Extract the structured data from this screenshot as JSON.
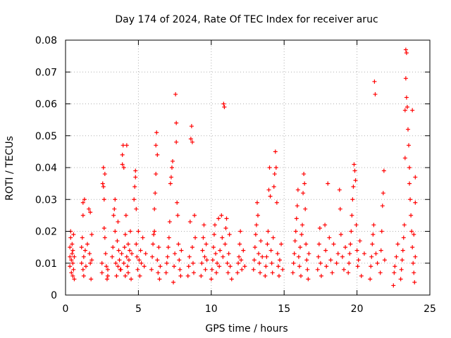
{
  "chart_data": {
    "type": "scatter",
    "title": "Day 174 of 2024, Rate Of TEC Index for receiver aruc",
    "xlabel": "GPS time / hours",
    "ylabel": "ROTI / TECUs",
    "xlim": [
      0,
      25
    ],
    "ylim": [
      0,
      0.08
    ],
    "x_ticks": [
      0,
      5,
      10,
      15,
      20,
      25
    ],
    "y_ticks": [
      0,
      0.01,
      0.02,
      0.03,
      0.04,
      0.05,
      0.06,
      0.07,
      0.08
    ],
    "x_tick_labels": [
      "0",
      "5",
      "10",
      "15",
      "20",
      "25"
    ],
    "y_tick_labels": [
      "0",
      "0.01",
      "0.02",
      "0.03",
      "0.04",
      "0.05",
      "0.06",
      "0.07",
      "0.08"
    ],
    "grid": true,
    "marker": "+",
    "color": "#ff0000",
    "points": [
      [
        0.3,
        0.009
      ],
      [
        0.3,
        0.012
      ],
      [
        0.3,
        0.015
      ],
      [
        0.35,
        0.018
      ],
      [
        0.35,
        0.02
      ],
      [
        0.4,
        0.007
      ],
      [
        0.4,
        0.011
      ],
      [
        0.45,
        0.013
      ],
      [
        0.45,
        0.016
      ],
      [
        0.5,
        0.006
      ],
      [
        0.5,
        0.01
      ],
      [
        0.5,
        0.014
      ],
      [
        0.55,
        0.008
      ],
      [
        0.55,
        0.019
      ],
      [
        0.6,
        0.012
      ],
      [
        0.6,
        0.005
      ],
      [
        1.1,
        0.01
      ],
      [
        1.1,
        0.015
      ],
      [
        1.15,
        0.018
      ],
      [
        1.2,
        0.029
      ],
      [
        1.2,
        0.025
      ],
      [
        1.2,
        0.008
      ],
      [
        1.25,
        0.012
      ],
      [
        1.25,
        0.006
      ],
      [
        1.3,
        0.03
      ],
      [
        1.35,
        0.014
      ],
      [
        1.4,
        0.009
      ],
      [
        1.5,
        0.016
      ],
      [
        1.6,
        0.027
      ],
      [
        1.65,
        0.013
      ],
      [
        1.7,
        0.026
      ],
      [
        1.7,
        0.01
      ],
      [
        1.75,
        0.005
      ],
      [
        1.8,
        0.011
      ],
      [
        1.8,
        0.019
      ],
      [
        2.5,
        0.007
      ],
      [
        2.5,
        0.01
      ],
      [
        2.55,
        0.035
      ],
      [
        2.6,
        0.04
      ],
      [
        2.6,
        0.034
      ],
      [
        2.65,
        0.03
      ],
      [
        2.65,
        0.021
      ],
      [
        2.7,
        0.038
      ],
      [
        2.7,
        0.018
      ],
      [
        2.75,
        0.013
      ],
      [
        2.8,
        0.009
      ],
      [
        2.85,
        0.005
      ],
      [
        2.9,
        0.006
      ],
      [
        2.9,
        0.008
      ],
      [
        3.2,
        0.012
      ],
      [
        3.25,
        0.015
      ],
      [
        3.3,
        0.025
      ],
      [
        3.35,
        0.027
      ],
      [
        3.4,
        0.03
      ],
      [
        3.4,
        0.02
      ],
      [
        3.45,
        0.01
      ],
      [
        3.5,
        0.006
      ],
      [
        3.55,
        0.017
      ],
      [
        3.6,
        0.009
      ],
      [
        3.6,
        0.023
      ],
      [
        3.65,
        0.014
      ],
      [
        3.7,
        0.011
      ],
      [
        3.75,
        0.008
      ],
      [
        3.8,
        0.008
      ],
      [
        3.85,
        0.013
      ],
      [
        3.9,
        0.041
      ],
      [
        3.9,
        0.044
      ],
      [
        3.95,
        0.047
      ],
      [
        4.0,
        0.04
      ],
      [
        4.0,
        0.01
      ],
      [
        4.05,
        0.015
      ],
      [
        4.1,
        0.019
      ],
      [
        4.1,
        0.006
      ],
      [
        4.15,
        0.025
      ],
      [
        4.2,
        0.047
      ],
      [
        4.2,
        0.012
      ],
      [
        4.25,
        0.009
      ],
      [
        4.3,
        0.016
      ],
      [
        4.3,
        0.007
      ],
      [
        4.35,
        0.011
      ],
      [
        4.4,
        0.014
      ],
      [
        4.45,
        0.02
      ],
      [
        4.5,
        0.005
      ],
      [
        4.55,
        0.013
      ],
      [
        4.7,
        0.03
      ],
      [
        4.75,
        0.034
      ],
      [
        4.8,
        0.039
      ],
      [
        4.8,
        0.037
      ],
      [
        4.85,
        0.027
      ],
      [
        4.85,
        0.016
      ],
      [
        4.9,
        0.012
      ],
      [
        4.95,
        0.008
      ],
      [
        5.0,
        0.02
      ],
      [
        5.05,
        0.011
      ],
      [
        5.1,
        0.006
      ],
      [
        5.15,
        0.014
      ],
      [
        5.2,
        0.01
      ],
      [
        5.3,
        0.018
      ],
      [
        5.4,
        0.009
      ],
      [
        5.5,
        0.013
      ],
      [
        5.9,
        0.008
      ],
      [
        5.95,
        0.012
      ],
      [
        6.0,
        0.016
      ],
      [
        6.05,
        0.019
      ],
      [
        6.1,
        0.02
      ],
      [
        6.1,
        0.027
      ],
      [
        6.15,
        0.032
      ],
      [
        6.2,
        0.038
      ],
      [
        6.2,
        0.047
      ],
      [
        6.25,
        0.051
      ],
      [
        6.3,
        0.044
      ],
      [
        6.3,
        0.011
      ],
      [
        6.35,
        0.007
      ],
      [
        6.4,
        0.015
      ],
      [
        6.45,
        0.005
      ],
      [
        6.5,
        0.009
      ],
      [
        6.9,
        0.007
      ],
      [
        6.95,
        0.01
      ],
      [
        7.0,
        0.012
      ],
      [
        7.05,
        0.015
      ],
      [
        7.1,
        0.018
      ],
      [
        7.15,
        0.023
      ],
      [
        7.2,
        0.035
      ],
      [
        7.25,
        0.037
      ],
      [
        7.3,
        0.04
      ],
      [
        7.35,
        0.042
      ],
      [
        7.4,
        0.004
      ],
      [
        7.45,
        0.009
      ],
      [
        7.5,
        0.013
      ],
      [
        7.55,
        0.063
      ],
      [
        7.6,
        0.054
      ],
      [
        7.6,
        0.048
      ],
      [
        7.65,
        0.029
      ],
      [
        7.7,
        0.025
      ],
      [
        7.75,
        0.016
      ],
      [
        7.8,
        0.011
      ],
      [
        7.85,
        0.008
      ],
      [
        7.9,
        0.006
      ],
      [
        7.95,
        0.014
      ],
      [
        8.4,
        0.006
      ],
      [
        8.45,
        0.009
      ],
      [
        8.5,
        0.012
      ],
      [
        8.55,
        0.023
      ],
      [
        8.6,
        0.049
      ],
      [
        8.65,
        0.053
      ],
      [
        8.7,
        0.048
      ],
      [
        8.7,
        0.015
      ],
      [
        8.75,
        0.01
      ],
      [
        8.8,
        0.007
      ],
      [
        8.85,
        0.025
      ],
      [
        8.9,
        0.018
      ],
      [
        9.3,
        0.006
      ],
      [
        9.35,
        0.01
      ],
      [
        9.4,
        0.014
      ],
      [
        9.45,
        0.018
      ],
      [
        9.5,
        0.022
      ],
      [
        9.55,
        0.012
      ],
      [
        9.6,
        0.008
      ],
      [
        9.65,
        0.016
      ],
      [
        9.7,
        0.011
      ],
      [
        10.0,
        0.005
      ],
      [
        10.05,
        0.008
      ],
      [
        10.1,
        0.011
      ],
      [
        10.15,
        0.015
      ],
      [
        10.2,
        0.019
      ],
      [
        10.25,
        0.022
      ],
      [
        10.3,
        0.013
      ],
      [
        10.35,
        0.007
      ],
      [
        10.4,
        0.01
      ],
      [
        10.5,
        0.024
      ],
      [
        10.55,
        0.009
      ],
      [
        10.6,
        0.014
      ],
      [
        10.7,
        0.025
      ],
      [
        10.75,
        0.018
      ],
      [
        10.8,
        0.012
      ],
      [
        10.85,
        0.06
      ],
      [
        10.9,
        0.059
      ],
      [
        10.95,
        0.016
      ],
      [
        11.0,
        0.021
      ],
      [
        11.05,
        0.024
      ],
      [
        11.1,
        0.01
      ],
      [
        11.15,
        0.007
      ],
      [
        11.2,
        0.013
      ],
      [
        11.25,
        0.019
      ],
      [
        11.3,
        0.009
      ],
      [
        11.4,
        0.005
      ],
      [
        11.8,
        0.007
      ],
      [
        11.85,
        0.01
      ],
      [
        11.9,
        0.012
      ],
      [
        11.95,
        0.016
      ],
      [
        12.0,
        0.02
      ],
      [
        12.05,
        0.011
      ],
      [
        12.1,
        0.008
      ],
      [
        12.2,
        0.014
      ],
      [
        12.3,
        0.009
      ],
      [
        12.9,
        0.008
      ],
      [
        12.95,
        0.011
      ],
      [
        13.0,
        0.015
      ],
      [
        13.05,
        0.019
      ],
      [
        13.1,
        0.022
      ],
      [
        13.15,
        0.029
      ],
      [
        13.2,
        0.025
      ],
      [
        13.25,
        0.013
      ],
      [
        13.3,
        0.01
      ],
      [
        13.35,
        0.007
      ],
      [
        13.4,
        0.017
      ],
      [
        13.5,
        0.012
      ],
      [
        13.7,
        0.006
      ],
      [
        13.75,
        0.009
      ],
      [
        13.8,
        0.012
      ],
      [
        13.85,
        0.016
      ],
      [
        13.9,
        0.02
      ],
      [
        13.95,
        0.033
      ],
      [
        14.0,
        0.04
      ],
      [
        14.05,
        0.031
      ],
      [
        14.1,
        0.014
      ],
      [
        14.15,
        0.01
      ],
      [
        14.2,
        0.007
      ],
      [
        14.25,
        0.018
      ],
      [
        14.3,
        0.034
      ],
      [
        14.35,
        0.038
      ],
      [
        14.4,
        0.045
      ],
      [
        14.45,
        0.04
      ],
      [
        14.5,
        0.029
      ],
      [
        14.55,
        0.013
      ],
      [
        14.6,
        0.009
      ],
      [
        14.65,
        0.006
      ],
      [
        14.7,
        0.011
      ],
      [
        14.8,
        0.016
      ],
      [
        14.9,
        0.008
      ],
      [
        15.6,
        0.007
      ],
      [
        15.65,
        0.01
      ],
      [
        15.7,
        0.013
      ],
      [
        15.75,
        0.017
      ],
      [
        15.8,
        0.02
      ],
      [
        15.85,
        0.024
      ],
      [
        15.9,
        0.028
      ],
      [
        15.95,
        0.033
      ],
      [
        16.0,
        0.012
      ],
      [
        16.05,
        0.009
      ],
      [
        16.1,
        0.015
      ],
      [
        16.15,
        0.006
      ],
      [
        16.2,
        0.019
      ],
      [
        16.25,
        0.022
      ],
      [
        16.3,
        0.032
      ],
      [
        16.35,
        0.038
      ],
      [
        16.4,
        0.035
      ],
      [
        16.45,
        0.027
      ],
      [
        16.5,
        0.016
      ],
      [
        16.55,
        0.011
      ],
      [
        16.6,
        0.008
      ],
      [
        16.65,
        0.005
      ],
      [
        16.7,
        0.013
      ],
      [
        17.3,
        0.008
      ],
      [
        17.35,
        0.012
      ],
      [
        17.4,
        0.016
      ],
      [
        17.45,
        0.021
      ],
      [
        17.5,
        0.01
      ],
      [
        17.55,
        0.006
      ],
      [
        17.8,
        0.022
      ],
      [
        17.85,
        0.014
      ],
      [
        17.9,
        0.009
      ],
      [
        18.0,
        0.035
      ],
      [
        18.1,
        0.018
      ],
      [
        18.2,
        0.011
      ],
      [
        18.3,
        0.007
      ],
      [
        18.4,
        0.016
      ],
      [
        18.6,
        0.01
      ],
      [
        18.7,
        0.013
      ],
      [
        18.8,
        0.033
      ],
      [
        18.85,
        0.027
      ],
      [
        18.9,
        0.019
      ],
      [
        19.0,
        0.012
      ],
      [
        19.1,
        0.008
      ],
      [
        19.2,
        0.015
      ],
      [
        19.4,
        0.007
      ],
      [
        19.45,
        0.01
      ],
      [
        19.5,
        0.013
      ],
      [
        19.55,
        0.016
      ],
      [
        19.6,
        0.02
      ],
      [
        19.65,
        0.025
      ],
      [
        19.7,
        0.03
      ],
      [
        19.75,
        0.034
      ],
      [
        19.8,
        0.041
      ],
      [
        19.85,
        0.039
      ],
      [
        19.9,
        0.036
      ],
      [
        19.95,
        0.022
      ],
      [
        20.0,
        0.014
      ],
      [
        20.05,
        0.009
      ],
      [
        20.1,
        0.011
      ],
      [
        20.2,
        0.017
      ],
      [
        20.3,
        0.006
      ],
      [
        20.5,
        0.013
      ],
      [
        20.9,
        0.005
      ],
      [
        20.95,
        0.009
      ],
      [
        21.0,
        0.012
      ],
      [
        21.05,
        0.016
      ],
      [
        21.1,
        0.019
      ],
      [
        21.15,
        0.022
      ],
      [
        21.2,
        0.067
      ],
      [
        21.25,
        0.063
      ],
      [
        21.3,
        0.013
      ],
      [
        21.4,
        0.01
      ],
      [
        21.6,
        0.007
      ],
      [
        21.65,
        0.014
      ],
      [
        21.7,
        0.02
      ],
      [
        21.75,
        0.028
      ],
      [
        21.8,
        0.032
      ],
      [
        21.85,
        0.039
      ],
      [
        21.9,
        0.011
      ],
      [
        22.5,
        0.003
      ],
      [
        22.55,
        0.007
      ],
      [
        22.6,
        0.009
      ],
      [
        22.7,
        0.012
      ],
      [
        22.8,
        0.016
      ],
      [
        23.0,
        0.005
      ],
      [
        23.05,
        0.008
      ],
      [
        23.1,
        0.011
      ],
      [
        23.15,
        0.014
      ],
      [
        23.2,
        0.018
      ],
      [
        23.25,
        0.022
      ],
      [
        23.3,
        0.043
      ],
      [
        23.3,
        0.058
      ],
      [
        23.35,
        0.068
      ],
      [
        23.35,
        0.077
      ],
      [
        23.4,
        0.076
      ],
      [
        23.4,
        0.062
      ],
      [
        23.45,
        0.059
      ],
      [
        23.5,
        0.052
      ],
      [
        23.55,
        0.047
      ],
      [
        23.6,
        0.04
      ],
      [
        23.6,
        0.035
      ],
      [
        23.65,
        0.03
      ],
      [
        23.7,
        0.025
      ],
      [
        23.75,
        0.02
      ],
      [
        23.8,
        0.015
      ],
      [
        23.85,
        0.01
      ],
      [
        23.9,
        0.007
      ],
      [
        23.95,
        0.004
      ],
      [
        24.0,
        0.037
      ],
      [
        24.0,
        0.029
      ],
      [
        24.0,
        0.012
      ],
      [
        23.9,
        0.019
      ],
      [
        23.8,
        0.058
      ]
    ]
  }
}
